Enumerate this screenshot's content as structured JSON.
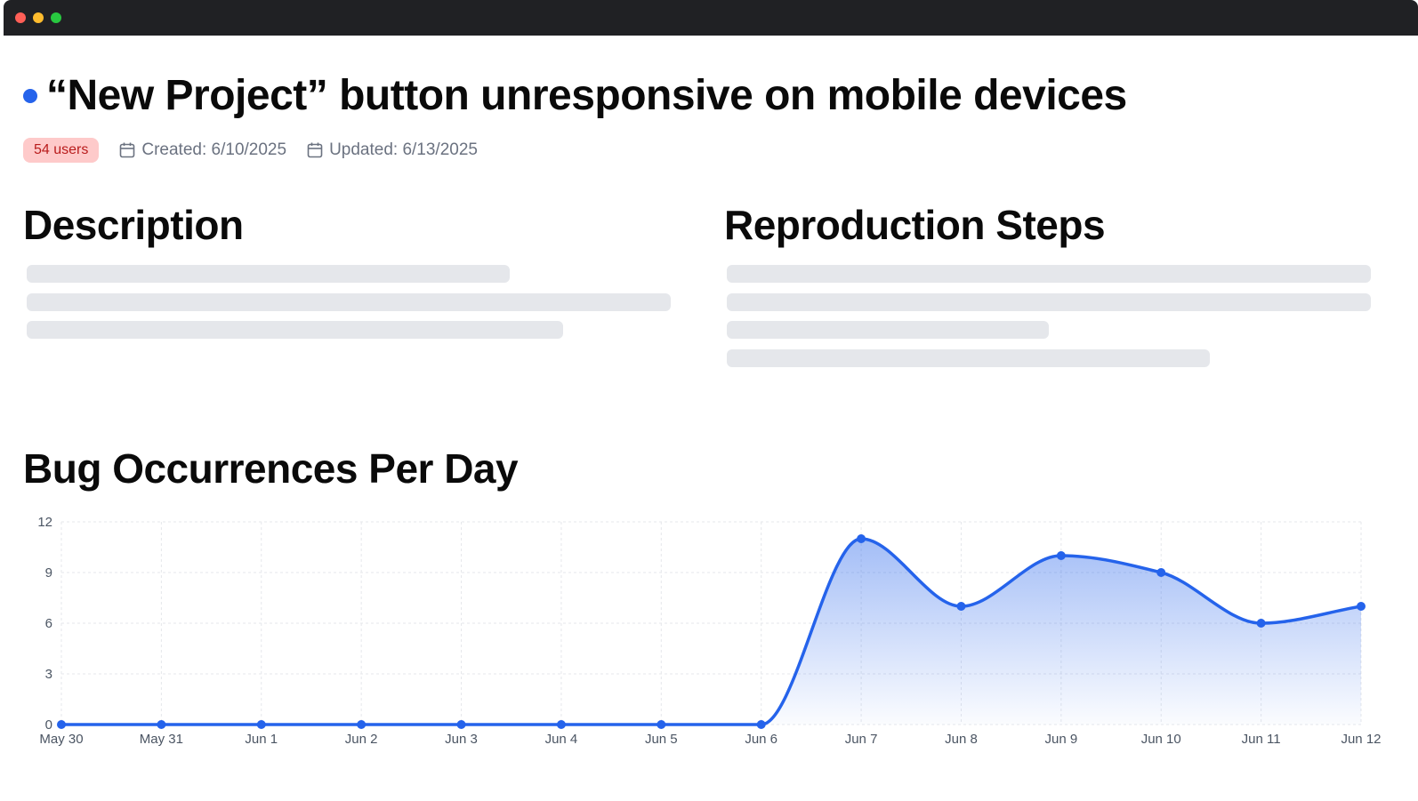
{
  "issue": {
    "title": "“New Project” button unresponsive on mobile devices",
    "status_color": "#2563eb",
    "badge": "54 users",
    "created": "Created: 6/10/2025",
    "updated": "Updated: 6/13/2025"
  },
  "sections": {
    "description": "Description",
    "reproduction": "Reproduction Steps",
    "chart": "Bug Occurrences Per Day"
  },
  "colors": {
    "accent": "#2563eb",
    "badge_bg": "#fecaca",
    "badge_text": "#b91c1c",
    "skeleton": "#e5e7eb"
  },
  "chart_data": {
    "type": "area",
    "title": "Bug Occurrences Per Day",
    "categories": [
      "May 30",
      "May 31",
      "Jun 1",
      "Jun 2",
      "Jun 3",
      "Jun 4",
      "Jun 5",
      "Jun 6",
      "Jun 7",
      "Jun 8",
      "Jun 9",
      "Jun 10",
      "Jun 11",
      "Jun 12"
    ],
    "values": [
      0,
      0,
      0,
      0,
      0,
      0,
      0,
      0,
      11,
      7,
      10,
      9,
      6,
      7
    ],
    "y_ticks": [
      0,
      3,
      6,
      9,
      12
    ],
    "ylim": [
      0,
      12
    ],
    "xlabel": "",
    "ylabel": "",
    "grid": true,
    "color": "#2563eb"
  }
}
